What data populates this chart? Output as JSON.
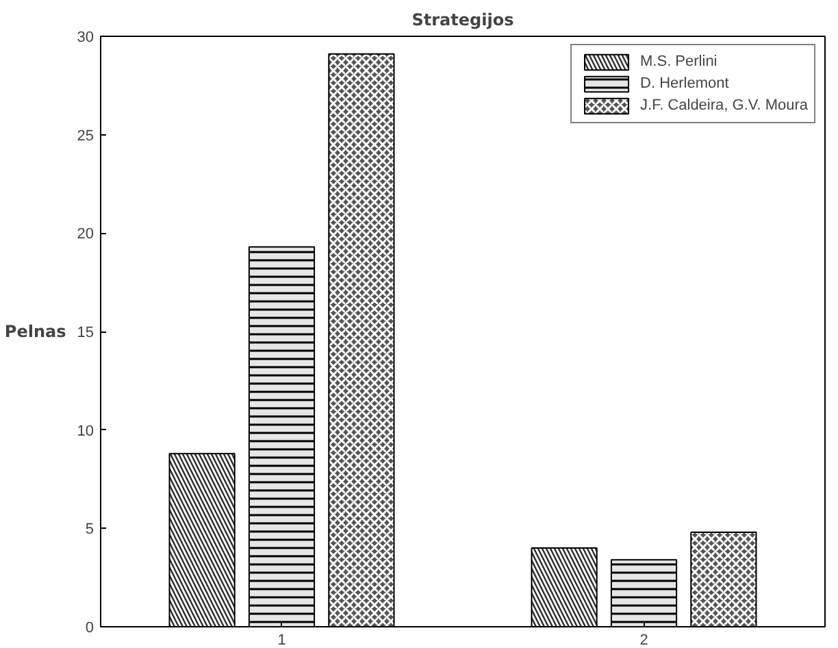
{
  "chart_data": {
    "type": "bar",
    "title": "Strategijos",
    "ylabel": "Pelnas",
    "categories": [
      "1",
      "2"
    ],
    "series": [
      {
        "name": "M.S. Perlini",
        "color": "#2a2a2a",
        "values": [
          8.8,
          4.0
        ]
      },
      {
        "name": "D. Herlemont",
        "color": "#e6e6e6",
        "values": [
          19.3,
          3.4
        ]
      },
      {
        "name": "J.F. Caldeira, G.V. Moura",
        "color": "#555555",
        "values": [
          29.1,
          4.8
        ]
      }
    ],
    "ylim": [
      0,
      30
    ],
    "yticks": [
      0,
      5,
      10,
      15,
      20,
      25,
      30
    ],
    "grid": false,
    "legend": "top right"
  }
}
